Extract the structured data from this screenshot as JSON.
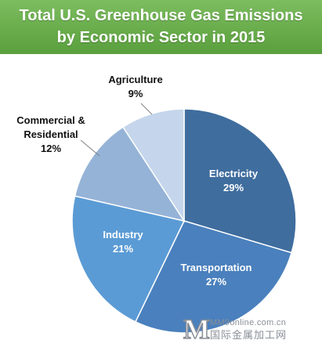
{
  "header": {
    "title_line1": "Total U.S. Greenhouse Gas Emissions",
    "title_line2": "by Economic Sector in 2015",
    "background": "#6aae4c"
  },
  "chart_data": {
    "type": "pie",
    "title": "Total U.S. Greenhouse Gas Emissions by Economic Sector in 2015",
    "unit": "%",
    "start": "12 o'clock, clockwise",
    "slices": [
      {
        "label": "Electricity",
        "value": 29,
        "value_label": "29%",
        "color": "#3f6d9e"
      },
      {
        "label": "Transportation",
        "value": 27,
        "value_label": "27%",
        "color": "#4a80bd"
      },
      {
        "label": "Industry",
        "value": 21,
        "value_label": "21%",
        "color": "#5b9bd5"
      },
      {
        "label": "Commercial & Residential",
        "label_lines": [
          "Commercial &",
          "Residential"
        ],
        "value": 12,
        "value_label": "12%",
        "color": "#95b3d7"
      },
      {
        "label": "Agriculture",
        "value": 9,
        "value_label": "9%",
        "color": "#c5d6ec"
      }
    ]
  },
  "watermark": {
    "letter": "M",
    "site": "MM9online.com.cn",
    "chinese": "国际金属加工网"
  }
}
